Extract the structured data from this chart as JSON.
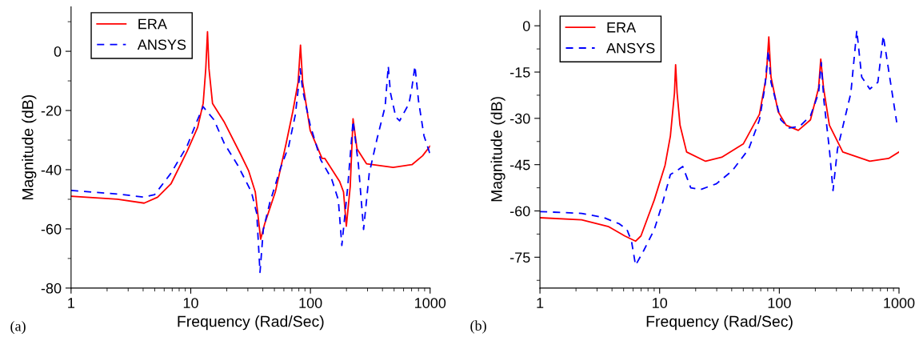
{
  "chart_data": [
    {
      "type": "line",
      "xlabel": "Frequency (Rad/Sec)",
      "ylabel": "Magnitude (dB)",
      "log": "x",
      "xlim": [
        1,
        1000
      ],
      "xticks": [
        1,
        10,
        100,
        1000
      ],
      "ylim": [
        -80,
        15
      ],
      "yticks": [
        -80,
        -60,
        -40,
        -20,
        0
      ],
      "grid": false,
      "legend": "top left",
      "annotations": [
        "(a)"
      ],
      "series": [
        {
          "name": "ERA",
          "color": "#ff0000",
          "line_style": "solid",
          "x": [
            1,
            2.44,
            4.08,
            5.28,
            6.83,
            9.3,
            11.4,
            12.7,
            13.35,
            13.8,
            14.2,
            15.2,
            19.1,
            26.1,
            30.4,
            34.6,
            38.4,
            41.4,
            50.9,
            62.6,
            71.2,
            78.9,
            82.6,
            86.1,
            99.5,
            125,
            132,
            175,
            189,
            199.5,
            215,
            227,
            245,
            294,
            491,
            705,
            865,
            1000
          ],
          "values": [
            -49,
            -50,
            -51.3,
            -49.3,
            -44.8,
            -33.9,
            -25.8,
            -17.6,
            -5.9,
            6.6,
            -5.9,
            -17.6,
            -24,
            -34.8,
            -40.3,
            -47.5,
            -63.5,
            -58.4,
            -47.5,
            -31.2,
            -20.4,
            -10.4,
            2.1,
            -10.4,
            -26.7,
            -36.2,
            -36.2,
            -43.9,
            -47.5,
            -59.1,
            -45.7,
            -22.8,
            -33,
            -38,
            -39.2,
            -38.3,
            -35.3,
            -32
          ]
        },
        {
          "name": "ANSYS",
          "color": "#0000ff",
          "line_style": "dashed",
          "x": [
            1,
            2.44,
            4.08,
            5,
            6.83,
            9.3,
            11.4,
            12.7,
            13.7,
            15.6,
            19.1,
            24.7,
            32.1,
            35.6,
            37.9,
            40.4,
            45.8,
            56.3,
            65.8,
            74.9,
            80.2,
            82.2,
            86.1,
            99.5,
            122,
            150,
            171,
            183,
            205,
            227,
            252,
            278,
            310,
            361,
            421,
            447,
            466,
            517,
            556,
            667,
            705,
            747,
            800,
            888,
            1000
          ],
          "values": [
            -47,
            -48.2,
            -49.3,
            -48.4,
            -41.2,
            -32.1,
            -23.1,
            -18.7,
            -20.4,
            -23.1,
            -31.2,
            -38.5,
            -47.5,
            -54.8,
            -74.7,
            -60.2,
            -51.1,
            -39.4,
            -32.1,
            -21.3,
            -10.4,
            -5.9,
            -13.1,
            -24.9,
            -36.7,
            -43,
            -50.2,
            -65.6,
            -45.7,
            -23.5,
            -38.5,
            -60.2,
            -41.2,
            -29.4,
            -18.6,
            -5,
            -14,
            -22.2,
            -23.5,
            -17.6,
            -12.2,
            -5,
            -16.7,
            -28.5,
            -34.8
          ]
        }
      ]
    },
    {
      "type": "line",
      "xlabel": "Frequency (Rad/Sec)",
      "ylabel": "Magnitude (dB)",
      "log": "x",
      "xlim": [
        1,
        1000
      ],
      "xticks": [
        1,
        10,
        100,
        1000
      ],
      "ylim": [
        -85,
        5
      ],
      "yticks": [
        -75,
        -60,
        -45,
        -30,
        -15,
        0
      ],
      "grid": false,
      "legend": "top left",
      "annotations": [
        "(b)"
      ],
      "series": [
        {
          "name": "ERA",
          "color": "#ff0000",
          "line_style": "solid",
          "x": [
            1,
            2.23,
            3.75,
            5.11,
            6.29,
            6.98,
            9.03,
            11.1,
            12.3,
            13.3,
            13.6,
            14.0,
            14.8,
            16.8,
            24.2,
            33,
            50,
            68.2,
            77.7,
            81.7,
            85.2,
            97.9,
            114,
            144,
            182,
            213,
            222,
            234,
            262,
            339,
            570,
            819,
            1000
          ],
          "values": [
            -62.2,
            -62.9,
            -65.1,
            -68.1,
            -69.8,
            -68.1,
            -56.4,
            -45.2,
            -35.7,
            -21.8,
            -12.6,
            -21.8,
            -32.2,
            -40.9,
            -43.9,
            -42.6,
            -38.3,
            -28.7,
            -16.6,
            -3.6,
            -16.6,
            -27.9,
            -32.2,
            -33.9,
            -30.5,
            -20.1,
            -10.8,
            -20.1,
            -32.2,
            -40.9,
            -43.9,
            -43,
            -40.9
          ]
        },
        {
          "name": "ANSYS",
          "color": "#0000ff",
          "line_style": "dashed",
          "x": [
            1,
            2.23,
            3.38,
            4.61,
            5.33,
            5.82,
            6.29,
            7.35,
            9.03,
            10.6,
            12.3,
            14.0,
            15.6,
            18.2,
            21.8,
            29.8,
            40.6,
            55.4,
            68.2,
            75.6,
            80.9,
            85.2,
            103,
            121,
            148,
            182,
            213,
            224,
            236,
            262,
            281,
            306,
            396,
            444,
            488,
            570,
            666,
            739,
            778,
            957
          ],
          "values": [
            -60.2,
            -60.8,
            -62.1,
            -64.2,
            -66,
            -69.8,
            -77.6,
            -72.9,
            -66,
            -57.3,
            -48.2,
            -46.9,
            -45.6,
            -52.5,
            -53.1,
            -51.2,
            -46.9,
            -40,
            -30.5,
            -20.1,
            -8,
            -18.3,
            -30.5,
            -33.1,
            -32.6,
            -29.2,
            -21.8,
            -11.9,
            -24.4,
            -40,
            -53.4,
            -40,
            -21.8,
            -1.5,
            -16.6,
            -20.5,
            -18.3,
            -3.2,
            -8.8,
            -31.3
          ]
        }
      ]
    }
  ]
}
